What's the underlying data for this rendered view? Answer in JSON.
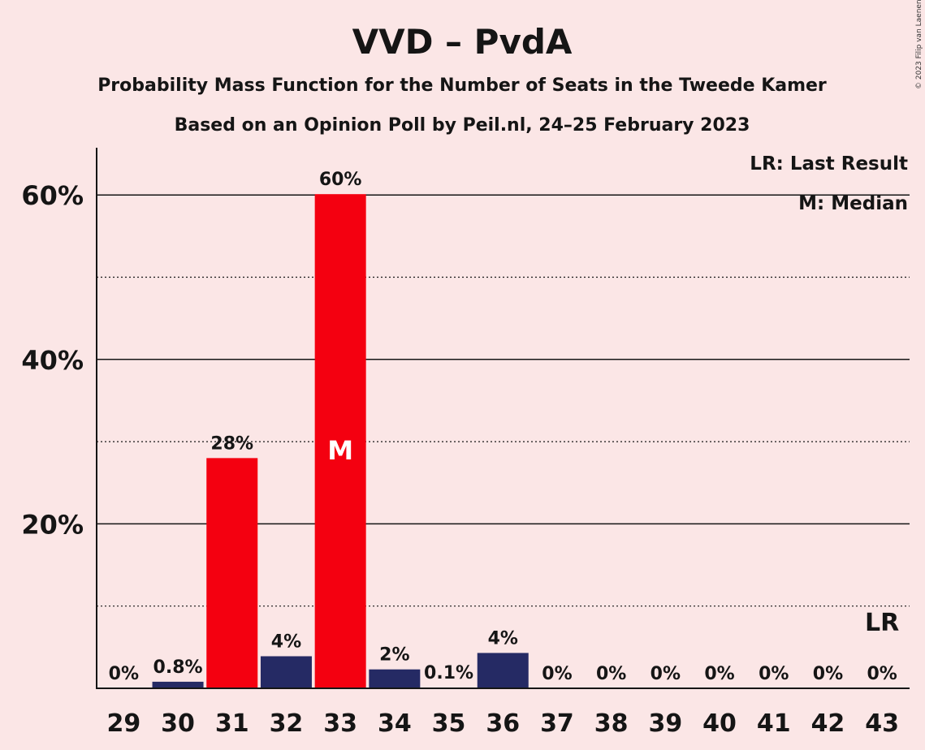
{
  "title": "VVD – PvdA",
  "subtitle1": "Probability Mass Function for the Number of Seats in the Tweede Kamer",
  "subtitle2": "Based on an Opinion Poll by Peil.nl, 24–25 February 2023",
  "copyright": "© 2023 Filip van Laenen",
  "legend": {
    "lr": "LR: Last Result",
    "median": "M: Median"
  },
  "colors": {
    "background": "#fbe6e6",
    "red": "#f40010",
    "navy": "#252a64",
    "text": "#151515"
  },
  "chart_data": {
    "type": "bar",
    "categories": [
      "29",
      "30",
      "31",
      "32",
      "33",
      "34",
      "35",
      "36",
      "37",
      "38",
      "39",
      "40",
      "41",
      "42",
      "43"
    ],
    "values": [
      0,
      0.8,
      28,
      4,
      60,
      2,
      0.1,
      4,
      0,
      0,
      0,
      0,
      0,
      0,
      0
    ],
    "bar_values": [
      0,
      0.8,
      28,
      3.9,
      60.1,
      2.3,
      0.1,
      4.3,
      0,
      0,
      0,
      0,
      0,
      0,
      0
    ],
    "labels": [
      "0%",
      "0.8%",
      "28%",
      "4%",
      "60%",
      "2%",
      "0.1%",
      "4%",
      "0%",
      "0%",
      "0%",
      "0%",
      "0%",
      "0%",
      "0%"
    ],
    "bar_colors": [
      "navy",
      "navy",
      "red",
      "navy",
      "red",
      "navy",
      "navy",
      "navy",
      "navy",
      "navy",
      "navy",
      "navy",
      "navy",
      "navy",
      "navy"
    ],
    "yticks": [
      "20%",
      "40%",
      "60%"
    ],
    "ytick_values": [
      20,
      40,
      60
    ],
    "ylim": [
      0,
      66
    ],
    "grid": "solid at 20/40/60, dotted at 10/30/50",
    "median_category": "33",
    "median_label": "M",
    "last_result_category": "43",
    "last_result_label": "LR",
    "legend_position": "top-right"
  }
}
